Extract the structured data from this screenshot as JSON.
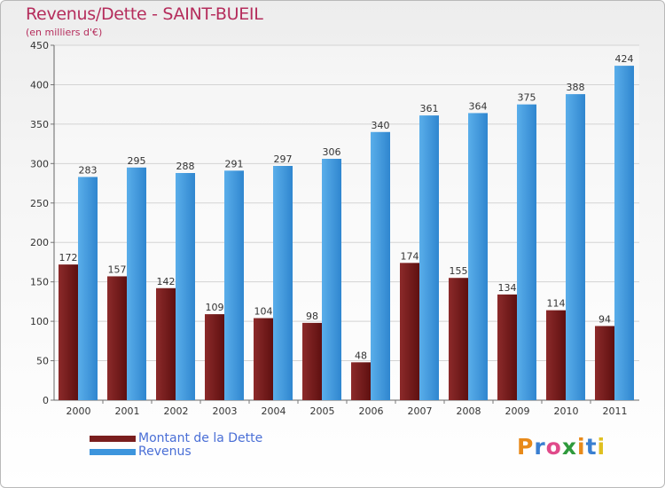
{
  "chart_data": {
    "type": "bar",
    "title": "Revenus/Dette - SAINT-BUEIL",
    "subtitle": "(en milliers d'€)",
    "categories": [
      "2000",
      "2001",
      "2002",
      "2003",
      "2004",
      "2005",
      "2006",
      "2007",
      "2008",
      "2009",
      "2010",
      "2011"
    ],
    "series": [
      {
        "name": "Montant de la Dette",
        "color": "#7a1e1e",
        "values": [
          172,
          157,
          142,
          109,
          104,
          98,
          48,
          174,
          155,
          134,
          114,
          94
        ]
      },
      {
        "name": "Revenus",
        "color": "#3d95dd",
        "values": [
          283,
          295,
          288,
          291,
          297,
          306,
          340,
          361,
          364,
          375,
          388,
          424
        ]
      }
    ],
    "yticks": [
      "0",
      "50",
      "100",
      "150",
      "200",
      "250",
      "300",
      "350",
      "400",
      "450"
    ],
    "ylim": [
      0,
      450
    ],
    "grid": true,
    "legend_position": "bottom-left"
  },
  "logo": {
    "letters": [
      "P",
      "r",
      "o",
      "x",
      "i",
      "t",
      "i"
    ],
    "colors": [
      "#e88a1a",
      "#3a7fd1",
      "#e04a8a",
      "#2f9a3c",
      "#e88a1a",
      "#3a7fd1",
      "#e0c020"
    ]
  }
}
